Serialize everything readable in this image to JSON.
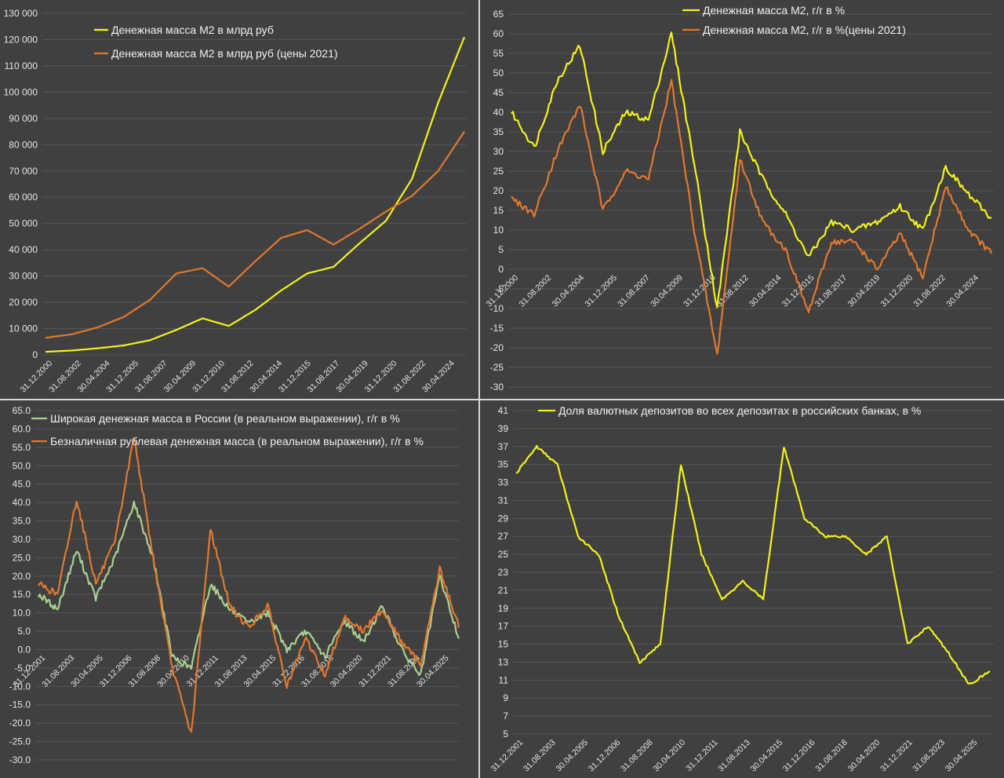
{
  "chart_data": [
    {
      "type": "line",
      "id": "m2-level",
      "ylim": [
        0,
        130000
      ],
      "y_ticks": [
        "0",
        "10 000",
        "20 000",
        "30 000",
        "40 000",
        "50 000",
        "60 000",
        "70 000",
        "80 000",
        "90 000",
        "100 000",
        "110 000",
        "120 000",
        "130 000"
      ],
      "x_ticks": [
        "31.12.2000",
        "31.08.2002",
        "30.04.2004",
        "31.12.2005",
        "31.08.2007",
        "30.04.2009",
        "31.12.2010",
        "31.08.2012",
        "30.04.2014",
        "31.12.2015",
        "31.08.2017",
        "30.04.2019",
        "31.12.2020",
        "31.08.2022",
        "30.04.2024"
      ],
      "x_decimal_years": [
        2001.0,
        2002.67,
        2004.33,
        2006.0,
        2007.67,
        2009.33,
        2011.0,
        2012.67,
        2014.33,
        2016.0,
        2017.67,
        2019.33,
        2021.0,
        2022.67,
        2024.33,
        2025.5
      ],
      "grid": true,
      "legend_position": "top-left",
      "series": [
        {
          "name": "Денежная масса М2 в млрд руб",
          "color": "#f2f21a",
          "values": [
            1150,
            1650,
            2500,
            3600,
            5600,
            9500,
            13900,
            11000,
            17000,
            24500,
            31000,
            33500,
            42500,
            51000,
            67000,
            96000,
            121000
          ]
        },
        {
          "name": "Денежная масса М2 в млрд руб (цены 2021)",
          "color": "#e0782e",
          "values": [
            6500,
            7800,
            10500,
            14500,
            21000,
            31000,
            33000,
            26000,
            35500,
            44500,
            47500,
            42000,
            48000,
            54500,
            60500,
            70000,
            85000
          ]
        }
      ]
    },
    {
      "type": "line",
      "id": "m2-yoy",
      "ylim": [
        -30,
        65
      ],
      "y_ticks": [
        "-30",
        "-25",
        "-20",
        "-15",
        "-10",
        "-5",
        "0",
        "5",
        "10",
        "15",
        "20",
        "25",
        "30",
        "35",
        "40",
        "45",
        "50",
        "55",
        "60",
        "65"
      ],
      "x_ticks": [
        "31.12.2000",
        "31.08.2002",
        "30.04.2004",
        "31.12.2005",
        "31.08.2007",
        "30.04.2009",
        "31.12.2010",
        "31.08.2012",
        "30.04.2014",
        "31.12.2015",
        "31.08.2017",
        "30.04.2019",
        "31.12.2020",
        "31.08.2022",
        "30.04.2024"
      ],
      "grid": true,
      "legend_position": "top-right",
      "series": [
        {
          "name": "Денежная масса М2, г/г в %",
          "color": "#f2f21a",
          "values": [
            40,
            31,
            48,
            57,
            30,
            40,
            38,
            60,
            27,
            -10,
            35,
            23,
            14,
            3,
            12,
            10,
            12,
            16,
            10,
            26,
            19,
            13
          ]
        },
        {
          "name": "Денежная масса М2, г/г в %(цены 2021)",
          "color": "#e0782e",
          "values": [
            18,
            14,
            30,
            42,
            15,
            25,
            23,
            48,
            10,
            -22,
            28,
            12,
            5,
            -11,
            7,
            7,
            0,
            9,
            -2,
            21,
            10,
            4
          ]
        }
      ]
    },
    {
      "type": "line",
      "id": "broad-money-real",
      "ylim": [
        -30,
        65
      ],
      "y_ticks": [
        "-30.0",
        "-25.0",
        "-20.0",
        "-15.0",
        "-10.0",
        "-5.0",
        "0.0",
        "5.0",
        "10.0",
        "15.0",
        "20.0",
        "25.0",
        "30.0",
        "35.0",
        "40.0",
        "45.0",
        "50.0",
        "55.0",
        "60.0",
        "65.0"
      ],
      "x_ticks": [
        "31.12.2001",
        "31.08.2003",
        "30.04.2005",
        "31.12.2006",
        "31.08.2008",
        "30.04.2010",
        "31.12.2011",
        "31.08.2013",
        "30.04.2015",
        "31.12.2016",
        "31.08.2018",
        "30.04.2020",
        "31.12.2021",
        "31.08.2023",
        "30.04.2025"
      ],
      "grid": true,
      "legend_position": "top-left",
      "series": [
        {
          "name": "Широкая денежная масса в России (в реальном выражении), г/г в %",
          "color": "#a9d08e",
          "values": [
            15,
            11,
            27,
            14,
            25,
            40,
            25,
            -2,
            -5,
            18,
            11,
            7,
            10,
            0,
            5,
            -2,
            8,
            2,
            12,
            0,
            -7,
            20,
            3
          ]
        },
        {
          "name": "Безналичная рублевая денежная масса (в реальном выражении), г/г в %",
          "color": "#e0782e",
          "values": [
            18,
            15,
            41,
            18,
            29,
            58,
            25,
            -5,
            -23,
            33,
            12,
            6,
            12,
            -10,
            3,
            -7,
            9,
            5,
            11,
            2,
            -4,
            22,
            6
          ]
        }
      ]
    },
    {
      "type": "line",
      "id": "fx-deposits-share",
      "ylim": [
        5,
        41
      ],
      "y_ticks": [
        "5",
        "7",
        "9",
        "11",
        "13",
        "15",
        "17",
        "19",
        "21",
        "23",
        "25",
        "27",
        "29",
        "31",
        "33",
        "35",
        "37",
        "39",
        "41"
      ],
      "x_ticks": [
        "31.12.2001",
        "31.08.2003",
        "30.04.2005",
        "31.12.2006",
        "31.08.2008",
        "30.04.2010",
        "31.12.2011",
        "31.08.2013",
        "30.04.2015",
        "31.12.2016",
        "31.08.2018",
        "30.04.2020",
        "31.12.2021",
        "31.08.2023",
        "30.04.2025"
      ],
      "grid": true,
      "legend_position": "top-center",
      "series": [
        {
          "name": "Доля валютных депозитов во всех депозитах в российских банках,  в %",
          "color": "#f2f21a",
          "values": [
            34,
            37,
            35,
            27,
            25,
            18,
            13,
            15,
            35,
            25,
            20,
            22,
            20,
            37,
            29,
            27,
            27,
            25,
            27,
            15,
            17,
            14,
            10.5,
            12
          ]
        }
      ]
    }
  ]
}
